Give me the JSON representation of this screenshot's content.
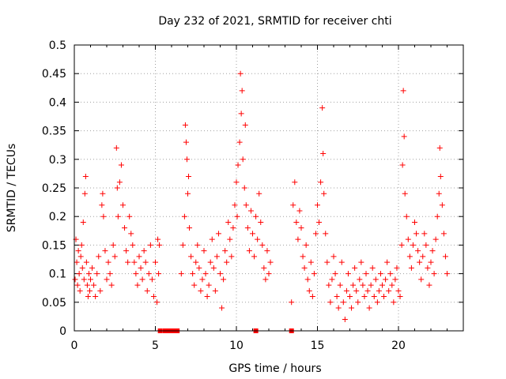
{
  "chart_data": {
    "type": "scatter",
    "title": "Day 232 of 2021, SRMTID for receiver chti",
    "xlabel": "GPS time / hours",
    "ylabel": "SRMTID / TECUs",
    "xlim": [
      0,
      24
    ],
    "ylim": [
      0,
      0.5
    ],
    "x_ticks": [
      0,
      5,
      10,
      15,
      20
    ],
    "y_ticks": [
      0,
      0.05,
      0.1,
      0.15,
      0.2,
      0.25,
      0.3,
      0.35,
      0.4,
      0.45,
      0.5
    ],
    "x_tick_labels": [
      "0",
      "5",
      "10",
      "15",
      "20"
    ],
    "y_tick_labels": [
      "0",
      "0.05",
      "0.1",
      "0.15",
      "0.2",
      "0.25",
      "0.3",
      "0.35",
      "0.4",
      "0.45",
      "0.5"
    ],
    "grid": true,
    "marker": "plus",
    "color": "#ff0000",
    "zero_markers_x": [
      5.3,
      5.6,
      5.75,
      5.9,
      6.05,
      6.2,
      6.35,
      11.2,
      13.4
    ],
    "series": [
      {
        "name": "SRMTID",
        "points": [
          [
            0.05,
            0.09
          ],
          [
            0.1,
            0.16
          ],
          [
            0.15,
            0.12
          ],
          [
            0.2,
            0.08
          ],
          [
            0.25,
            0.14
          ],
          [
            0.3,
            0.1
          ],
          [
            0.35,
            0.07
          ],
          [
            0.4,
            0.13
          ],
          [
            0.45,
            0.15
          ],
          [
            0.5,
            0.11
          ],
          [
            0.55,
            0.19
          ],
          [
            0.6,
            0.09
          ],
          [
            0.65,
            0.24
          ],
          [
            0.7,
            0.27
          ],
          [
            0.75,
            0.12
          ],
          [
            0.8,
            0.08
          ],
          [
            0.85,
            0.06
          ],
          [
            0.9,
            0.1
          ],
          [
            0.95,
            0.07
          ],
          [
            1.0,
            0.09
          ],
          [
            1.1,
            0.11
          ],
          [
            1.2,
            0.08
          ],
          [
            1.3,
            0.06
          ],
          [
            1.4,
            0.1
          ],
          [
            1.5,
            0.13
          ],
          [
            1.6,
            0.07
          ],
          [
            1.7,
            0.22
          ],
          [
            1.75,
            0.24
          ],
          [
            1.8,
            0.2
          ],
          [
            1.9,
            0.14
          ],
          [
            2.0,
            0.09
          ],
          [
            2.1,
            0.12
          ],
          [
            2.2,
            0.1
          ],
          [
            2.3,
            0.08
          ],
          [
            2.4,
            0.15
          ],
          [
            2.5,
            0.13
          ],
          [
            2.6,
            0.32
          ],
          [
            2.65,
            0.25
          ],
          [
            2.7,
            0.2
          ],
          [
            2.8,
            0.26
          ],
          [
            2.9,
            0.29
          ],
          [
            3.0,
            0.22
          ],
          [
            3.1,
            0.18
          ],
          [
            3.2,
            0.14
          ],
          [
            3.3,
            0.12
          ],
          [
            3.4,
            0.2
          ],
          [
            3.5,
            0.17
          ],
          [
            3.6,
            0.15
          ],
          [
            3.7,
            0.12
          ],
          [
            3.8,
            0.1
          ],
          [
            3.9,
            0.08
          ],
          [
            4.0,
            0.13
          ],
          [
            4.1,
            0.11
          ],
          [
            4.2,
            0.09
          ],
          [
            4.3,
            0.14
          ],
          [
            4.4,
            0.12
          ],
          [
            4.5,
            0.07
          ],
          [
            4.6,
            0.1
          ],
          [
            4.7,
            0.15
          ],
          [
            4.8,
            0.09
          ],
          [
            4.9,
            0.06
          ],
          [
            5.0,
            0.12
          ],
          [
            5.1,
            0.05
          ],
          [
            5.15,
            0.16
          ],
          [
            5.2,
            0.1
          ],
          [
            5.25,
            0.15
          ],
          [
            6.6,
            0.1
          ],
          [
            6.7,
            0.15
          ],
          [
            6.8,
            0.2
          ],
          [
            6.85,
            0.36
          ],
          [
            6.9,
            0.33
          ],
          [
            6.95,
            0.3
          ],
          [
            7.0,
            0.24
          ],
          [
            7.05,
            0.27
          ],
          [
            7.1,
            0.18
          ],
          [
            7.2,
            0.13
          ],
          [
            7.3,
            0.1
          ],
          [
            7.4,
            0.08
          ],
          [
            7.5,
            0.12
          ],
          [
            7.6,
            0.15
          ],
          [
            7.7,
            0.11
          ],
          [
            7.8,
            0.07
          ],
          [
            7.9,
            0.09
          ],
          [
            8.0,
            0.14
          ],
          [
            8.1,
            0.1
          ],
          [
            8.2,
            0.06
          ],
          [
            8.3,
            0.08
          ],
          [
            8.4,
            0.12
          ],
          [
            8.5,
            0.16
          ],
          [
            8.6,
            0.11
          ],
          [
            8.7,
            0.07
          ],
          [
            8.8,
            0.13
          ],
          [
            8.9,
            0.17
          ],
          [
            9.0,
            0.1
          ],
          [
            9.1,
            0.04
          ],
          [
            9.2,
            0.09
          ],
          [
            9.3,
            0.14
          ],
          [
            9.4,
            0.12
          ],
          [
            9.5,
            0.19
          ],
          [
            9.6,
            0.16
          ],
          [
            9.7,
            0.13
          ],
          [
            9.8,
            0.18
          ],
          [
            9.9,
            0.22
          ],
          [
            10.0,
            0.26
          ],
          [
            10.05,
            0.2
          ],
          [
            10.1,
            0.29
          ],
          [
            10.2,
            0.33
          ],
          [
            10.25,
            0.45
          ],
          [
            10.3,
            0.38
          ],
          [
            10.35,
            0.42
          ],
          [
            10.4,
            0.3
          ],
          [
            10.5,
            0.25
          ],
          [
            10.55,
            0.36
          ],
          [
            10.6,
            0.22
          ],
          [
            10.7,
            0.18
          ],
          [
            10.8,
            0.14
          ],
          [
            10.9,
            0.21
          ],
          [
            11.0,
            0.17
          ],
          [
            11.1,
            0.13
          ],
          [
            11.2,
            0.2
          ],
          [
            11.3,
            0.16
          ],
          [
            11.4,
            0.24
          ],
          [
            11.5,
            0.19
          ],
          [
            11.6,
            0.15
          ],
          [
            11.7,
            0.11
          ],
          [
            11.8,
            0.09
          ],
          [
            11.9,
            0.14
          ],
          [
            12.0,
            0.1
          ],
          [
            12.1,
            0.12
          ],
          [
            13.4,
            0.05
          ],
          [
            13.5,
            0.22
          ],
          [
            13.6,
            0.26
          ],
          [
            13.7,
            0.19
          ],
          [
            13.8,
            0.16
          ],
          [
            13.9,
            0.21
          ],
          [
            14.0,
            0.18
          ],
          [
            14.1,
            0.13
          ],
          [
            14.2,
            0.11
          ],
          [
            14.3,
            0.15
          ],
          [
            14.4,
            0.09
          ],
          [
            14.5,
            0.07
          ],
          [
            14.6,
            0.12
          ],
          [
            14.7,
            0.06
          ],
          [
            14.8,
            0.1
          ],
          [
            14.9,
            0.17
          ],
          [
            15.0,
            0.22
          ],
          [
            15.1,
            0.19
          ],
          [
            15.2,
            0.26
          ],
          [
            15.3,
            0.39
          ],
          [
            15.35,
            0.31
          ],
          [
            15.4,
            0.24
          ],
          [
            15.5,
            0.17
          ],
          [
            15.6,
            0.12
          ],
          [
            15.7,
            0.08
          ],
          [
            15.8,
            0.05
          ],
          [
            15.9,
            0.09
          ],
          [
            16.0,
            0.13
          ],
          [
            16.1,
            0.1
          ],
          [
            16.2,
            0.06
          ],
          [
            16.3,
            0.04
          ],
          [
            16.4,
            0.08
          ],
          [
            16.5,
            0.12
          ],
          [
            16.6,
            0.05
          ],
          [
            16.7,
            0.02
          ],
          [
            16.8,
            0.07
          ],
          [
            16.9,
            0.1
          ],
          [
            17.0,
            0.06
          ],
          [
            17.1,
            0.04
          ],
          [
            17.2,
            0.08
          ],
          [
            17.3,
            0.11
          ],
          [
            17.4,
            0.07
          ],
          [
            17.5,
            0.05
          ],
          [
            17.6,
            0.09
          ],
          [
            17.7,
            0.12
          ],
          [
            17.8,
            0.08
          ],
          [
            17.9,
            0.06
          ],
          [
            18.0,
            0.1
          ],
          [
            18.1,
            0.07
          ],
          [
            18.2,
            0.04
          ],
          [
            18.3,
            0.08
          ],
          [
            18.4,
            0.11
          ],
          [
            18.5,
            0.06
          ],
          [
            18.6,
            0.09
          ],
          [
            18.7,
            0.05
          ],
          [
            18.8,
            0.07
          ],
          [
            18.9,
            0.1
          ],
          [
            19.0,
            0.08
          ],
          [
            19.1,
            0.06
          ],
          [
            19.2,
            0.09
          ],
          [
            19.3,
            0.12
          ],
          [
            19.4,
            0.07
          ],
          [
            19.5,
            0.1
          ],
          [
            19.6,
            0.08
          ],
          [
            19.7,
            0.05
          ],
          [
            19.8,
            0.09
          ],
          [
            19.9,
            0.11
          ],
          [
            20.0,
            0.07
          ],
          [
            20.1,
            0.06
          ],
          [
            20.2,
            0.15
          ],
          [
            20.25,
            0.29
          ],
          [
            20.3,
            0.42
          ],
          [
            20.35,
            0.34
          ],
          [
            20.4,
            0.24
          ],
          [
            20.5,
            0.2
          ],
          [
            20.6,
            0.16
          ],
          [
            20.7,
            0.13
          ],
          [
            20.8,
            0.11
          ],
          [
            20.9,
            0.15
          ],
          [
            21.0,
            0.19
          ],
          [
            21.1,
            0.17
          ],
          [
            21.2,
            0.14
          ],
          [
            21.3,
            0.12
          ],
          [
            21.4,
            0.09
          ],
          [
            21.5,
            0.13
          ],
          [
            21.6,
            0.17
          ],
          [
            21.7,
            0.15
          ],
          [
            21.8,
            0.11
          ],
          [
            21.9,
            0.08
          ],
          [
            22.0,
            0.12
          ],
          [
            22.1,
            0.14
          ],
          [
            22.2,
            0.1
          ],
          [
            22.3,
            0.16
          ],
          [
            22.4,
            0.2
          ],
          [
            22.5,
            0.24
          ],
          [
            22.55,
            0.32
          ],
          [
            22.6,
            0.27
          ],
          [
            22.7,
            0.22
          ],
          [
            22.8,
            0.17
          ],
          [
            22.9,
            0.13
          ],
          [
            23.0,
            0.1
          ]
        ]
      }
    ]
  }
}
